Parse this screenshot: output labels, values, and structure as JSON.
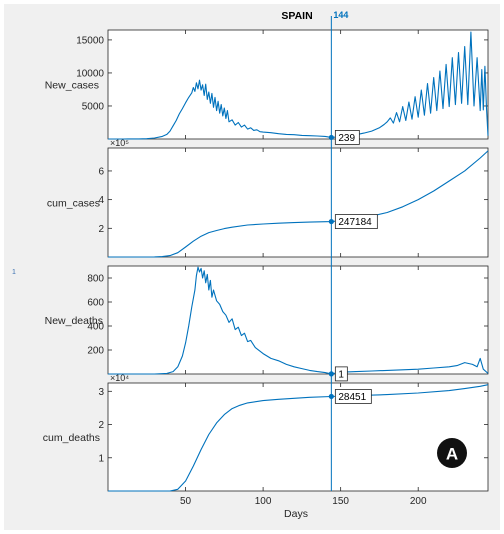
{
  "title": "SPAIN",
  "cursor_label": "144",
  "xlabel": "Days",
  "badge_letter": "A",
  "side_marker": "1",
  "colors": {
    "line": "#0072bd",
    "axis": "#262626",
    "badge": "#111111"
  },
  "chart_data": [
    {
      "type": "line",
      "ylabel": "New_cases",
      "xlim": [
        0,
        245
      ],
      "ylim": [
        0,
        16500
      ],
      "yticks": [
        5000,
        10000,
        15000
      ],
      "ytick_labels": [
        "5000",
        "10000",
        "15000"
      ],
      "multiplier": "",
      "cursor_value": "239",
      "series": [
        {
          "x": [
            0,
            10,
            20,
            25,
            30,
            35,
            38,
            40,
            42,
            44,
            46,
            48,
            50,
            52,
            54,
            55,
            56,
            57,
            58,
            59,
            60,
            61,
            62,
            63,
            64,
            65,
            66,
            67,
            68,
            69,
            70,
            71,
            72,
            73,
            74,
            75,
            76,
            77,
            78,
            80,
            82,
            84,
            86,
            88,
            90,
            92,
            94,
            96,
            98,
            100,
            105,
            110,
            115,
            120,
            125,
            130,
            135,
            140,
            144,
            150,
            155,
            160,
            165,
            170,
            175,
            178,
            180,
            182,
            184,
            186,
            188,
            190,
            192,
            194,
            196,
            198,
            200,
            202,
            204,
            206,
            208,
            210,
            212,
            214,
            216,
            218,
            220,
            222,
            224,
            226,
            228,
            230,
            232,
            234,
            236,
            238,
            240,
            241,
            242,
            243,
            244,
            245
          ],
          "y": [
            0,
            0,
            20,
            50,
            150,
            400,
            700,
            1200,
            2000,
            2800,
            3800,
            4600,
            5500,
            6300,
            7000,
            7800,
            7200,
            8500,
            7600,
            8900,
            7400,
            8200,
            6600,
            8300,
            6000,
            7100,
            5400,
            6900,
            4800,
            6300,
            4300,
            5700,
            3900,
            5200,
            3500,
            4700,
            3100,
            4300,
            2600,
            2900,
            2100,
            2500,
            1800,
            2100,
            1500,
            1700,
            1300,
            1400,
            1100,
            1050,
            950,
            800,
            700,
            650,
            550,
            500,
            450,
            400,
            239,
            350,
            500,
            650,
            900,
            1200,
            1700,
            2200,
            2600,
            3200,
            2400,
            4000,
            2600,
            4900,
            2800,
            5600,
            3000,
            6400,
            3300,
            7400,
            3600,
            8400,
            3900,
            9300,
            4300,
            10300,
            4600,
            11300,
            4900,
            12300,
            5200,
            13100,
            5400,
            14000,
            5200,
            16200,
            5000,
            12300,
            4300,
            10500,
            4400,
            11000,
            5000,
            500
          ]
        }
      ]
    },
    {
      "type": "line",
      "ylabel": "cum_cases",
      "xlim": [
        0,
        245
      ],
      "ylim": [
        0,
        7.6
      ],
      "yticks": [
        2,
        4,
        6
      ],
      "ytick_labels": [
        "2",
        "4",
        "6"
      ],
      "multiplier": "×10⁵",
      "cursor_value": "247184",
      "series": [
        {
          "x": [
            0,
            20,
            30,
            35,
            40,
            45,
            50,
            55,
            60,
            65,
            70,
            75,
            80,
            90,
            100,
            110,
            120,
            130,
            144,
            150,
            160,
            170,
            180,
            190,
            200,
            210,
            220,
            230,
            240,
            245
          ],
          "y": [
            0,
            0,
            0.01,
            0.03,
            0.1,
            0.3,
            0.7,
            1.1,
            1.45,
            1.7,
            1.85,
            1.98,
            2.08,
            2.23,
            2.3,
            2.36,
            2.4,
            2.43,
            2.47,
            2.53,
            2.65,
            2.85,
            3.1,
            3.5,
            4.0,
            4.6,
            5.3,
            6.0,
            6.9,
            7.4
          ]
        }
      ]
    },
    {
      "type": "line",
      "ylabel": "New_deaths",
      "xlim": [
        0,
        245
      ],
      "ylim": [
        0,
        900
      ],
      "yticks": [
        200,
        400,
        600,
        800
      ],
      "ytick_labels": [
        "200",
        "400",
        "600",
        "800"
      ],
      "multiplier": "",
      "cursor_value": "1",
      "series": [
        {
          "x": [
            0,
            30,
            38,
            42,
            45,
            48,
            50,
            52,
            54,
            56,
            57,
            58,
            59,
            60,
            61,
            62,
            63,
            64,
            65,
            66,
            67,
            68,
            70,
            72,
            74,
            76,
            78,
            80,
            82,
            84,
            86,
            88,
            90,
            92,
            95,
            100,
            105,
            110,
            115,
            120,
            125,
            130,
            135,
            140,
            144,
            150,
            160,
            170,
            180,
            190,
            200,
            210,
            220,
            225,
            230,
            235,
            238,
            240,
            242,
            245
          ],
          "y": [
            0,
            0,
            5,
            20,
            60,
            150,
            260,
            400,
            560,
            700,
            820,
            890,
            850,
            880,
            800,
            860,
            760,
            830,
            700,
            780,
            640,
            700,
            610,
            580,
            520,
            490,
            430,
            460,
            370,
            390,
            320,
            340,
            270,
            280,
            220,
            170,
            130,
            110,
            80,
            60,
            45,
            30,
            20,
            12,
            1,
            15,
            20,
            25,
            30,
            35,
            40,
            50,
            60,
            70,
            95,
            80,
            60,
            130,
            40,
            5
          ]
        }
      ]
    },
    {
      "type": "line",
      "ylabel": "cum_deaths",
      "xlim": [
        0,
        245
      ],
      "ylim": [
        0,
        3.25
      ],
      "yticks": [
        1,
        2,
        3
      ],
      "ytick_labels": [
        "1",
        "2",
        "3"
      ],
      "multiplier": "×10⁴",
      "cursor_value": "28451",
      "series": [
        {
          "x": [
            0,
            40,
            45,
            50,
            55,
            60,
            65,
            70,
            75,
            80,
            85,
            90,
            100,
            110,
            120,
            130,
            144,
            160,
            180,
            200,
            220,
            230,
            240,
            245
          ],
          "y": [
            0,
            0,
            0.05,
            0.3,
            0.75,
            1.25,
            1.7,
            2.05,
            2.3,
            2.48,
            2.58,
            2.65,
            2.72,
            2.76,
            2.79,
            2.82,
            2.845,
            2.87,
            2.9,
            2.95,
            3.02,
            3.08,
            3.15,
            3.2
          ]
        }
      ]
    }
  ],
  "xaxis": {
    "xlim": [
      0,
      245
    ],
    "ticks": [
      50,
      100,
      150,
      200
    ],
    "tick_labels": [
      "50",
      "100",
      "150",
      "200"
    ],
    "cursor_x": 144
  }
}
